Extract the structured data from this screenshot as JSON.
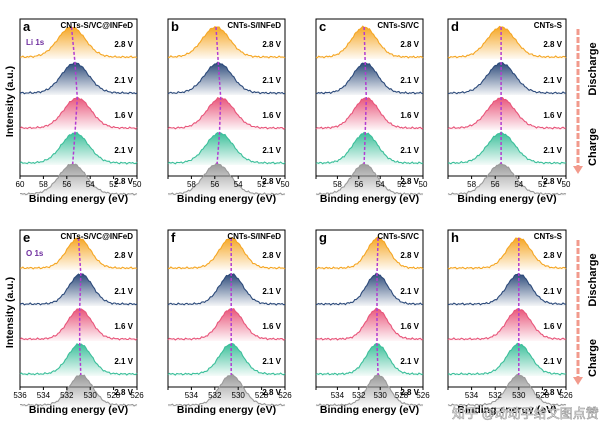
{
  "chart_data": {
    "type": "line",
    "description_free": true,
    "y_title": "Intensity (a.u.)",
    "x_title": "Binding energy (eV)",
    "spectra_order": [
      "2.8 V",
      "2.1 V",
      "1.6 V",
      "2.1 V",
      "2.8 V"
    ],
    "spectra_colors": [
      "#f5a623",
      "#2c4a7a",
      "#e8557a",
      "#3bbf9a",
      "#9a9a9a"
    ],
    "dashed_line_color": "#b23bd1",
    "side_labels": {
      "discharge": "Discharge",
      "charge": "Charge"
    },
    "arrow_color": "#f29a8c",
    "watermark": "知乎 @动动手给文图点赞",
    "rows": [
      {
        "element_label": "Li 1s",
        "xlim": [
          60,
          50
        ],
        "xticks": [
          "60",
          "58",
          "56",
          "54",
          "52",
          "50"
        ],
        "peak_width": 1.15,
        "panels": [
          {
            "letter": "a",
            "title": "CNTs-S/VC@INFeD",
            "peaks": [
              55.6,
              55.3,
              55.1,
              55.3,
              55.5
            ]
          },
          {
            "letter": "b",
            "title": "CNTs-S/INFeD",
            "peaks": [
              55.9,
              55.7,
              55.5,
              55.6,
              55.8
            ]
          },
          {
            "letter": "c",
            "title": "CNTs-S/VC",
            "peaks": [
              55.5,
              55.4,
              55.3,
              55.4,
              55.5
            ]
          },
          {
            "letter": "d",
            "title": "CNTs-S",
            "peaks": [
              55.5,
              55.5,
              55.5,
              55.5,
              55.5
            ]
          }
        ]
      },
      {
        "element_label": "O 1s",
        "xlim": [
          536,
          526
        ],
        "xticks": [
          "536",
          "534",
          "532",
          "530",
          "528",
          "526"
        ],
        "peak_width": 1.0,
        "panels": [
          {
            "letter": "e",
            "title": "CNTs-S/VC@INFeD",
            "peaks": [
              531.0,
              530.8,
              530.9,
              530.9,
              530.8
            ]
          },
          {
            "letter": "f",
            "title": "CNTs-S/INFeD",
            "peaks": [
              530.6,
              530.6,
              530.6,
              530.6,
              530.6
            ]
          },
          {
            "letter": "g",
            "title": "CNTs-S/VC",
            "peaks": [
              530.2,
              530.3,
              530.3,
              530.3,
              530.2
            ]
          },
          {
            "letter": "h",
            "title": "CNTs-S",
            "peaks": [
              530.0,
              530.0,
              530.0,
              530.0,
              530.0
            ]
          }
        ]
      }
    ]
  }
}
